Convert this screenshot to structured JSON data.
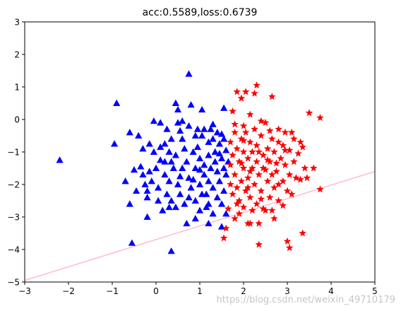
{
  "chart_data": {
    "type": "scatter",
    "title": "acc:0.5589,loss:0.6739",
    "xlabel": "",
    "ylabel": "",
    "xlim": [
      -3,
      5
    ],
    "ylim": [
      -5,
      3
    ],
    "xticks": [
      "−3",
      "−2",
      "−1",
      "0",
      "1",
      "2",
      "3",
      "4",
      "5"
    ],
    "yticks": [
      "3",
      "2",
      "1",
      "0",
      "−1",
      "−2",
      "−3",
      "−4",
      "−5"
    ],
    "grid": false,
    "series": [
      {
        "marker": "triangle",
        "color": "#0000ff",
        "points": [
          [
            -2.2,
            -1.25
          ],
          [
            -0.9,
            0.5
          ],
          [
            -0.95,
            -0.75
          ],
          [
            -0.6,
            -0.4
          ],
          [
            -0.55,
            -3.8
          ],
          [
            -0.6,
            -2.6
          ],
          [
            -0.7,
            -1.9
          ],
          [
            -0.5,
            -1.55
          ],
          [
            -0.45,
            -2.2
          ],
          [
            -0.35,
            -1.45
          ],
          [
            -0.3,
            -0.9
          ],
          [
            -0.3,
            -1.7
          ],
          [
            -0.25,
            -2.0
          ],
          [
            -0.2,
            -2.4
          ],
          [
            -0.2,
            -3.0
          ],
          [
            -0.15,
            -1.6
          ],
          [
            -0.1,
            -1.9
          ],
          [
            -0.05,
            -0.05
          ],
          [
            -0.05,
            -1.0
          ],
          [
            0.0,
            -1.5
          ],
          [
            0.05,
            -2.1
          ],
          [
            0.1,
            -0.85
          ],
          [
            0.15,
            -2.8
          ],
          [
            0.2,
            -1.3
          ],
          [
            0.2,
            -1.7
          ],
          [
            0.25,
            -0.3
          ],
          [
            0.25,
            -2.3
          ],
          [
            0.3,
            -1.0
          ],
          [
            0.3,
            -1.9
          ],
          [
            0.35,
            -0.6
          ],
          [
            0.35,
            -2.5
          ],
          [
            0.3,
            -2.7
          ],
          [
            0.4,
            -1.5
          ],
          [
            0.45,
            0.5
          ],
          [
            0.45,
            -1.1
          ],
          [
            0.5,
            -0.1
          ],
          [
            0.5,
            -2.0
          ],
          [
            0.55,
            -0.35
          ],
          [
            0.5,
            0.3
          ],
          [
            0.6,
            -0.6
          ],
          [
            0.6,
            -1.5
          ],
          [
            0.55,
            -2.3
          ],
          [
            0.65,
            -0.9
          ],
          [
            0.65,
            -2.6
          ],
          [
            0.7,
            -1.3
          ],
          [
            0.7,
            -3.2
          ],
          [
            0.75,
            1.4
          ],
          [
            0.75,
            -0.2
          ],
          [
            0.75,
            -1.8
          ],
          [
            0.8,
            -2.1
          ],
          [
            0.8,
            0.45
          ],
          [
            0.85,
            -1.0
          ],
          [
            0.9,
            -0.5
          ],
          [
            0.9,
            -1.5
          ],
          [
            0.9,
            -2.5
          ],
          [
            0.95,
            -0.85
          ],
          [
            1.0,
            -1.2
          ],
          [
            1.0,
            -2.0
          ],
          [
            1.0,
            -2.8
          ],
          [
            1.05,
            0.3
          ],
          [
            1.05,
            -0.5
          ],
          [
            1.1,
            -0.3
          ],
          [
            1.1,
            -1.4
          ],
          [
            1.1,
            -1.7
          ],
          [
            1.15,
            -2.3
          ],
          [
            1.15,
            -2.7
          ],
          [
            1.2,
            -0.7
          ],
          [
            1.2,
            -1.1
          ],
          [
            1.2,
            -1.9
          ],
          [
            1.25,
            -0.3
          ],
          [
            1.25,
            -1.5
          ],
          [
            1.3,
            -0.6
          ],
          [
            1.3,
            -2.1
          ],
          [
            1.3,
            -2.9
          ],
          [
            1.35,
            -1.0
          ],
          [
            1.35,
            -1.3
          ],
          [
            1.4,
            -0.4
          ],
          [
            1.4,
            -1.6
          ],
          [
            1.4,
            -2.4
          ],
          [
            1.45,
            -0.75
          ],
          [
            1.45,
            -1.9
          ],
          [
            1.5,
            -1.2
          ],
          [
            1.5,
            -2.6
          ],
          [
            1.5,
            -3.3
          ],
          [
            1.55,
            -0.6
          ],
          [
            1.55,
            -1.5
          ],
          [
            1.55,
            -2.2
          ],
          [
            1.6,
            -0.95
          ],
          [
            1.6,
            -1.7
          ],
          [
            1.6,
            -2.9
          ],
          [
            1.65,
            -1.3
          ],
          [
            1.2,
            -3.2
          ],
          [
            0.35,
            -4.05
          ],
          [
            0.05,
            -2.5
          ],
          [
            -0.4,
            -0.5
          ],
          [
            -0.15,
            -0.75
          ],
          [
            0.1,
            -0.1
          ],
          [
            0.2,
            -0.75
          ],
          [
            0.35,
            -1.3
          ],
          [
            0.6,
            -0.05
          ],
          [
            0.95,
            -0.3
          ],
          [
            1.0,
            -1.55
          ],
          [
            0.85,
            -1.85
          ],
          [
            0.75,
            -2.4
          ],
          [
            1.3,
            -0.15
          ],
          [
            1.5,
            -0.45
          ],
          [
            1.55,
            0.35
          ],
          [
            1.45,
            -1.05
          ],
          [
            1.2,
            -2.6
          ],
          [
            0.9,
            -3.05
          ],
          [
            0.45,
            -2.7
          ],
          [
            0.1,
            -1.25
          ],
          [
            -0.2,
            -2.2
          ],
          [
            0.55,
            -1.75
          ],
          [
            1.05,
            -2.3
          ]
        ]
      },
      {
        "marker": "star",
        "color": "#ff0000",
        "points": [
          [
            1.55,
            -3.65
          ],
          [
            1.65,
            -2.75
          ],
          [
            1.7,
            -0.7
          ],
          [
            1.7,
            -1.4
          ],
          [
            1.7,
            -2.0
          ],
          [
            1.75,
            -1.1
          ],
          [
            1.75,
            -2.3
          ],
          [
            1.8,
            -0.4
          ],
          [
            1.8,
            -1.7
          ],
          [
            1.85,
            -0.9
          ],
          [
            1.85,
            -2.1
          ],
          [
            1.85,
            0.85
          ],
          [
            1.9,
            -1.3
          ],
          [
            1.9,
            -2.5
          ],
          [
            1.95,
            -0.6
          ],
          [
            1.95,
            -1.9
          ],
          [
            2.0,
            -0.2
          ],
          [
            2.0,
            -1.0
          ],
          [
            2.0,
            -1.5
          ],
          [
            2.0,
            -2.7
          ],
          [
            2.05,
            -0.4
          ],
          [
            2.05,
            -2.2
          ],
          [
            2.1,
            -1.2
          ],
          [
            2.1,
            -1.8
          ],
          [
            2.15,
            -0.7
          ],
          [
            2.15,
            -2.4
          ],
          [
            2.15,
            -3.2
          ],
          [
            2.2,
            -1.0
          ],
          [
            2.2,
            -1.5
          ],
          [
            2.25,
            -0.3
          ],
          [
            2.25,
            -2.0
          ],
          [
            2.3,
            -0.8
          ],
          [
            2.3,
            -1.3
          ],
          [
            2.3,
            -2.6
          ],
          [
            2.3,
            1.05
          ],
          [
            2.35,
            -1.7
          ],
          [
            2.35,
            -3.85
          ],
          [
            2.4,
            -0.5
          ],
          [
            2.4,
            -2.2
          ],
          [
            2.45,
            -1.1
          ],
          [
            2.45,
            -1.5
          ],
          [
            2.5,
            -0.1
          ],
          [
            2.5,
            -2.8
          ],
          [
            2.55,
            -0.9
          ],
          [
            2.55,
            -1.9
          ],
          [
            2.6,
            -1.3
          ],
          [
            2.6,
            -2.4
          ],
          [
            2.65,
            -0.6
          ],
          [
            2.65,
            0.7
          ],
          [
            2.7,
            -1.0
          ],
          [
            2.7,
            -2.1
          ],
          [
            2.75,
            -1.6
          ],
          [
            2.8,
            -0.3
          ],
          [
            2.8,
            -2.5
          ],
          [
            2.85,
            -1.2
          ],
          [
            2.9,
            -0.8
          ],
          [
            2.9,
            -1.9
          ],
          [
            2.95,
            -0.4
          ],
          [
            2.95,
            -1.4
          ],
          [
            3.0,
            -2.2
          ],
          [
            3.0,
            -3.75
          ],
          [
            3.05,
            -0.95
          ],
          [
            3.05,
            -1.7
          ],
          [
            3.1,
            -0.4
          ],
          [
            3.15,
            -1.3
          ],
          [
            3.2,
            -1.8
          ],
          [
            3.3,
            -0.7
          ],
          [
            3.35,
            -3.5
          ],
          [
            3.4,
            -1.5
          ],
          [
            3.5,
            0.2
          ],
          [
            3.6,
            -1.5
          ],
          [
            3.75,
            -2.15
          ],
          [
            3.75,
            0.05
          ],
          [
            2.8,
            -0.7
          ],
          [
            2.05,
            0.85
          ],
          [
            1.95,
            0.65
          ],
          [
            2.15,
            0.15
          ],
          [
            2.4,
            -0.05
          ],
          [
            2.25,
            0.8
          ],
          [
            1.75,
            0.25
          ],
          [
            1.8,
            -3.05
          ],
          [
            1.6,
            -3.35
          ],
          [
            2.1,
            -3.2
          ],
          [
            3.05,
            -3.95
          ],
          [
            2.7,
            -3.05
          ],
          [
            2.35,
            -3.2
          ],
          [
            1.95,
            -1.35
          ],
          [
            2.35,
            -1.0
          ],
          [
            2.55,
            -1.25
          ],
          [
            2.2,
            -2.8
          ],
          [
            2.8,
            -2.0
          ],
          [
            2.45,
            -2.75
          ],
          [
            1.9,
            -2.9
          ],
          [
            3.15,
            -0.6
          ],
          [
            2.6,
            -0.35
          ],
          [
            2.75,
            -1.35
          ],
          [
            2.0,
            -0.65
          ],
          [
            1.8,
            -0.15
          ],
          [
            2.4,
            -2.45
          ],
          [
            3.3,
            -1.85
          ],
          [
            2.65,
            -2.8
          ],
          [
            1.85,
            -2.6
          ],
          [
            2.15,
            -1.6
          ],
          [
            2.5,
            -1.55
          ],
          [
            3.35,
            -0.85
          ],
          [
            3.25,
            -1.05
          ],
          [
            3.45,
            -1.8
          ],
          [
            2.9,
            -2.65
          ],
          [
            2.1,
            -2.1
          ],
          [
            2.95,
            -0.95
          ],
          [
            2.65,
            -1.7
          ],
          [
            3.1,
            -2.3
          ]
        ]
      }
    ],
    "lines": [
      {
        "color": "#ffc0cb",
        "x": [
          -3,
          5
        ],
        "y": [
          -4.95,
          -1.6
        ]
      }
    ]
  },
  "watermark": "https://blog.csdn.net/weixin_49710179"
}
